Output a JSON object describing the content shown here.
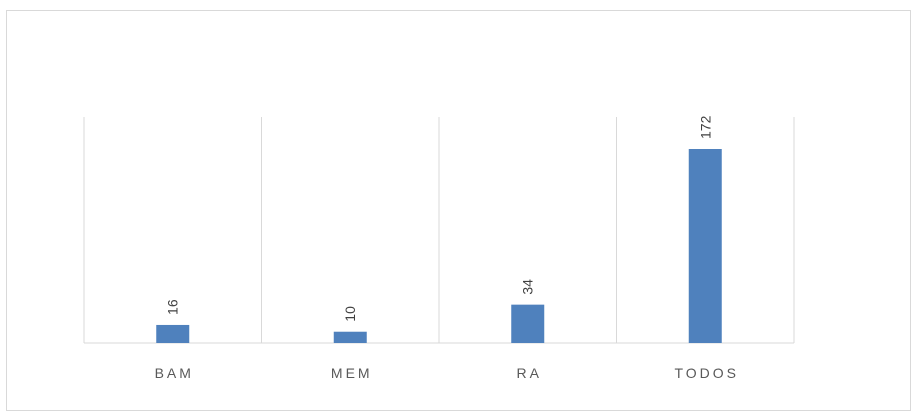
{
  "chart_data": {
    "type": "bar",
    "categories": [
      "BAM",
      "MEM",
      "RA",
      "TODOS"
    ],
    "values": [
      16,
      10,
      34,
      172
    ],
    "data_labels": [
      "16",
      "10",
      "34",
      "172"
    ],
    "ylim": [
      0,
      200
    ],
    "grid": "vertical-category-separators",
    "legend": "none",
    "colors": {
      "bar": "#4f81bd",
      "grid": "#d9d9d9",
      "frame": "#d9d9d9"
    }
  }
}
